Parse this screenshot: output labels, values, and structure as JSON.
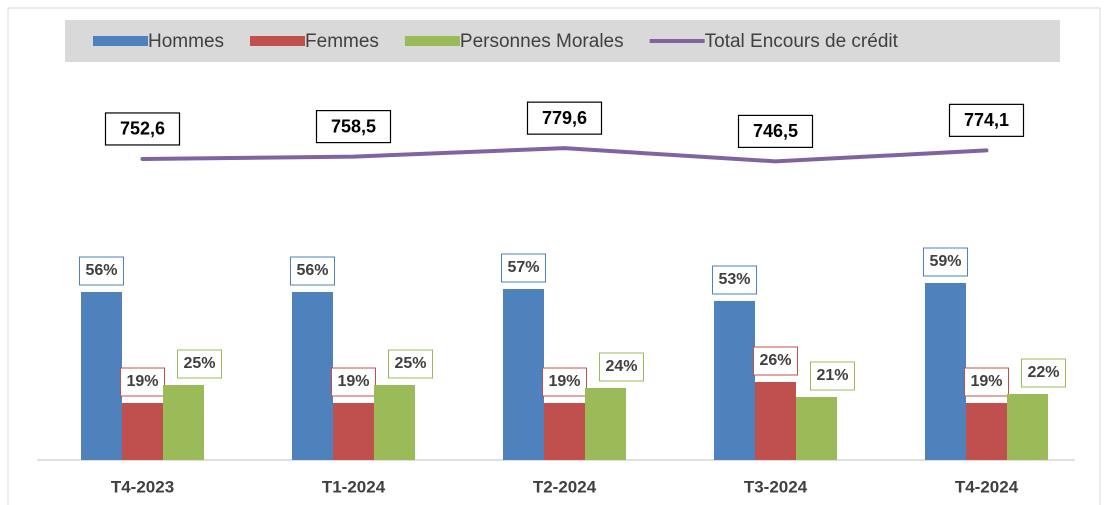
{
  "chart_data": {
    "type": "bar",
    "categories": [
      "T4-2023",
      "T1-2024",
      "T2-2024",
      "T3-2024",
      "T4-2024"
    ],
    "series": [
      {
        "name": "Hommes",
        "color": "#4f81bd",
        "values": [
          56,
          56,
          57,
          53,
          59
        ],
        "value_labels": [
          "56%",
          "56%",
          "57%",
          "53%",
          "59%"
        ]
      },
      {
        "name": "Femmes",
        "color": "#c0504d",
        "values": [
          19,
          19,
          19,
          26,
          19
        ],
        "value_labels": [
          "19%",
          "19%",
          "19%",
          "26%",
          "19%"
        ]
      },
      {
        "name": "Personnes Morales",
        "color": "#9bbb59",
        "values": [
          25,
          25,
          24,
          21,
          22
        ],
        "value_labels": [
          "25%",
          "25%",
          "24%",
          "21%",
          "22%"
        ]
      },
      {
        "name": "Total Encours de crédit",
        "color": "#8064a2",
        "type": "line",
        "axis": "y2",
        "values": [
          752.6,
          758.5,
          779.6,
          746.5,
          774.1
        ],
        "value_labels": [
          "752,6",
          "758,5",
          "779,6",
          "746,5",
          "774,1"
        ]
      }
    ],
    "ylim": [
      0,
      120
    ],
    "y2lim": [
      0,
      900
    ],
    "legend": "top"
  }
}
